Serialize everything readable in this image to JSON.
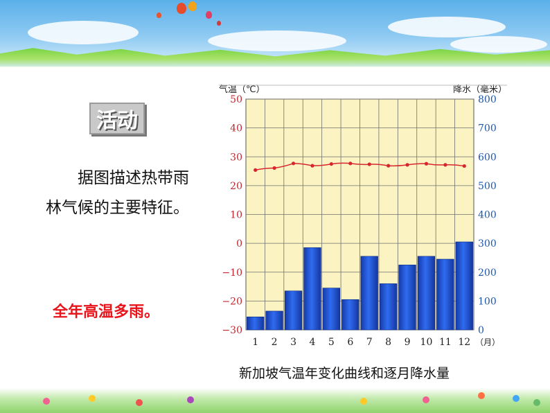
{
  "activity_label": "活动",
  "prompt": "据图描述热带雨林气候的主要特征。",
  "answer": "全年高温多雨。",
  "caption": "新加坡气温年变化曲线和逐月降水量",
  "colors": {
    "plot_bg": "#fbf3c2",
    "bar": "#1f4fd8",
    "temp_line": "#d7262e",
    "answer": "#e8141b",
    "left_axis_text": "#c0262e",
    "right_axis_text": "#1e56a8"
  },
  "chart_data": {
    "type": "bar+line",
    "left_axis": {
      "label": "气温（℃）",
      "ticks": [
        "50",
        "40",
        "30",
        "20",
        "10",
        "0",
        "−10",
        "−20",
        "−30"
      ],
      "range": [
        -30,
        50
      ]
    },
    "right_axis": {
      "label": "降水（毫米）",
      "ticks": [
        "800",
        "700",
        "600",
        "500",
        "400",
        "300",
        "200",
        "100",
        "0"
      ],
      "range": [
        0,
        800
      ]
    },
    "categories": [
      "1",
      "2",
      "3",
      "4",
      "5",
      "6",
      "7",
      "8",
      "9",
      "10",
      "11",
      "12"
    ],
    "x_unit": "（月）",
    "precipitation": [
      45,
      65,
      135,
      285,
      145,
      105,
      255,
      160,
      225,
      255,
      245,
      305
    ],
    "temperature": [
      25.4,
      26.1,
      27.7,
      26.9,
      27.5,
      27.7,
      27.4,
      26.9,
      27.2,
      27.6,
      27.2,
      26.8
    ],
    "grid": true
  }
}
